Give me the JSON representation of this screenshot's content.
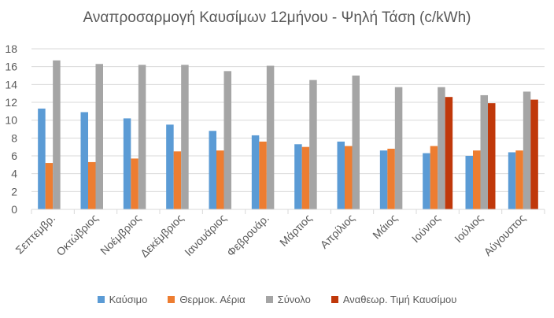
{
  "chart_data": {
    "type": "bar",
    "title": "Αναπροσαρμογή Καυσίμων 12μήνου - Ψηλή Τάση  (c/kWh)",
    "categories": [
      "Σεπτεμβρ.",
      "Οκτώβριος",
      "Νοέμβριος",
      "Δεκέμβριος",
      "Ιανουάριος",
      "Φεβρουάρ.",
      "Μάρτιος",
      "Απρίλιος",
      "Μάιος",
      "Ιούνιος",
      "Ιούλιος",
      "Αύγουστος"
    ],
    "series": [
      {
        "name": "Καύσιμο",
        "color": "#5B9BD5",
        "values": [
          11.3,
          10.9,
          10.2,
          9.5,
          8.8,
          8.3,
          7.3,
          7.6,
          6.6,
          6.3,
          6.0,
          6.4
        ]
      },
      {
        "name": "Θερμοκ. Αέρια",
        "color": "#ED7D31",
        "values": [
          5.2,
          5.3,
          5.7,
          6.5,
          6.6,
          7.6,
          7.0,
          7.1,
          6.8,
          7.1,
          6.6,
          6.6
        ]
      },
      {
        "name": "Σύνολο",
        "color": "#A5A5A5",
        "values": [
          16.7,
          16.3,
          16.2,
          16.2,
          15.5,
          16.1,
          14.5,
          15.0,
          13.7,
          13.7,
          12.8,
          13.2
        ]
      },
      {
        "name": "Αναθεωρ. Τιμή Καυσίμου",
        "color": "#C0380A",
        "values": [
          null,
          null,
          null,
          null,
          null,
          null,
          null,
          null,
          null,
          12.6,
          11.9,
          12.3
        ]
      }
    ],
    "ylim": [
      0,
      18
    ],
    "yticks": [
      "0",
      "2",
      "4",
      "6",
      "8",
      "10",
      "12",
      "14",
      "16",
      "18"
    ],
    "grid": true,
    "legend_position": "bottom"
  }
}
